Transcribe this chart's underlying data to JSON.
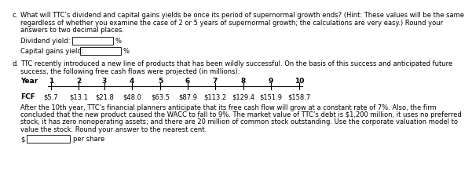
{
  "bg_color": "#ffffff",
  "part_c_label": "c.",
  "part_c_text1": "What will TTC’s dividend and capital gains yields be once its period of supernormal growth ends? (Hint: These values will be the same",
  "part_c_text2": "regardless of whether you examine the case of 2 or 5 years of supernormal growth; the calculations are very easy.) Round your",
  "part_c_text3": "answers to two decimal places.",
  "dividend_label": "Dividend yield:",
  "dividend_unit": "%",
  "capgains_label": "Capital gains yield:",
  "capgains_unit": "%",
  "part_d_label": "d.",
  "part_d_text1": "TTC recently introduced a new line of products that has been wildly successful. On the basis of this success and anticipated future",
  "part_d_text2": "success, the following free cash flows were projected (in millions):",
  "year_label": "Year",
  "years": [
    "1",
    "2",
    "3",
    "4",
    "5",
    "6",
    "7",
    "8",
    "9",
    "10"
  ],
  "fcf_label": "FCF",
  "fcf_values": [
    "$5.7",
    "$13.1",
    "$21.8",
    "$48.0",
    "$63.5",
    "$87.9",
    "$113.2",
    "$129.4",
    "$151.9",
    "$158.7"
  ],
  "after_text1": "After the 10th year, TTC’s financial planners anticipate that its free cash flow will grow at a constant rate of 7%. Also, the firm",
  "after_text2": "concluded that the new product caused the WACC to fall to 9%. The market value of TTC’s debt is $1,200 million, it uses no preferred",
  "after_text3": "stock, it has zero nonoperating assets; and there are 20 million of common stock outstanding. Use the corporate valuation model to",
  "after_text4": "value the stock. Round your answer to the nearest cent.",
  "dollar_sign": "$",
  "per_share": "per share",
  "font_size": 6.0,
  "font_size_bold": 6.5
}
